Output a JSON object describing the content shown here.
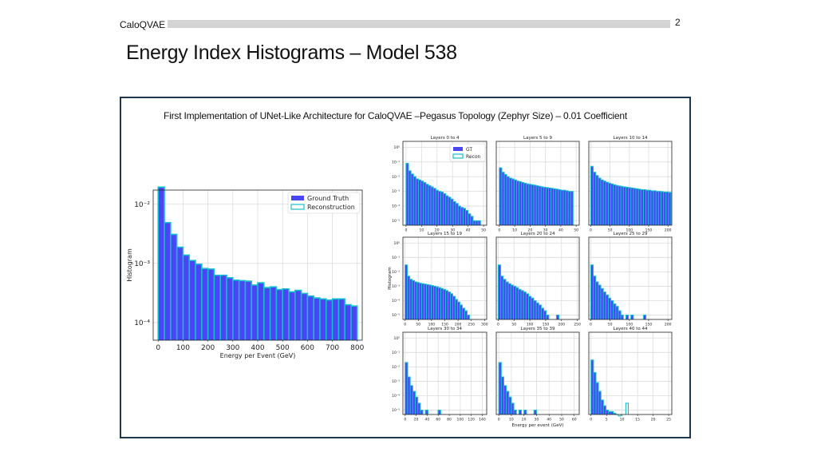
{
  "header": {
    "label": "CaloQVAE",
    "page_number": "2"
  },
  "slide": {
    "title": "Energy Index Histograms – Model 538"
  },
  "panel": {
    "caption": "First Implementation of UNet-Like Architecture for CaloQVAE –Pegasus Topology (Zephyr Size) – 0.01 Coefficient"
  },
  "colors": {
    "gt": "#4a45f5",
    "recon": "#17becf"
  },
  "chart_data": [
    {
      "type": "bar",
      "title": "",
      "xlabel": "Energy per Event (GeV)",
      "ylabel": "Histogram",
      "xlim": [
        -20,
        820
      ],
      "ylog": true,
      "ylim_exp": [
        -4.3,
        -1.76
      ],
      "xticks": [
        0,
        100,
        200,
        300,
        400,
        500,
        600,
        700,
        800
      ],
      "yticks": [
        {
          "exp": -2,
          "label": "10⁻²"
        },
        {
          "exp": -3,
          "label": "10⁻³"
        },
        {
          "exp": -4,
          "label": "10⁻⁴"
        }
      ],
      "legend": {
        "position": "top-right",
        "entries": [
          "Ground Truth",
          "Reconstruction"
        ]
      },
      "bin_start": 0,
      "bin_width": 25,
      "series": [
        {
          "name": "Ground Truth",
          "values": [
            0.0195,
            0.0049,
            0.0031,
            0.00188,
            0.00138,
            0.00112,
            0.00097,
            0.00082,
            0.0008,
            0.00063,
            0.00063,
            0.00057,
            0.00052,
            0.00051,
            0.0005,
            0.00043,
            0.00047,
            0.00039,
            0.0004,
            0.00036,
            0.00037,
            0.00033,
            0.00035,
            0.00031,
            0.00028,
            0.00026,
            0.00025,
            0.00024,
            0.00025,
            0.00025,
            0.0002,
            0.00019
          ]
        },
        {
          "name": "Reconstruction",
          "values": [
            0.0195,
            0.0049,
            0.0031,
            0.00188,
            0.00138,
            0.00112,
            0.00097,
            0.00082,
            0.0008,
            0.00063,
            0.00063,
            0.00057,
            0.00052,
            0.00051,
            0.0005,
            0.00043,
            0.00047,
            0.00039,
            0.0004,
            0.00036,
            0.00037,
            0.00033,
            0.00035,
            0.00031,
            0.00028,
            0.00026,
            0.00025,
            0.00024,
            0.00025,
            0.00025,
            0.0002,
            0.00019
          ]
        }
      ]
    },
    {
      "type": "bar",
      "title": "Layers 0 to 4",
      "xlabel": "",
      "ylabel": "",
      "xlim": [
        -2,
        52
      ],
      "ylog": true,
      "ylim_exp": [
        -5.3,
        0.4
      ],
      "xticks": [
        0,
        10,
        20,
        30,
        40,
        50
      ],
      "yticks": [
        {
          "exp": 0,
          "label": "10⁰"
        },
        {
          "exp": -1,
          "label": "10⁻¹"
        },
        {
          "exp": -2,
          "label": "10⁻²"
        },
        {
          "exp": -3,
          "label": "10⁻³"
        },
        {
          "exp": -4,
          "label": "10⁻⁴"
        },
        {
          "exp": -5,
          "label": "10⁻⁵"
        }
      ],
      "legend": {
        "position": "top-right",
        "entries": [
          "GT",
          "Recon"
        ]
      },
      "bin_start": 0,
      "bin_width": 1.6,
      "series": [
        {
          "name": "GT",
          "values": [
            0.08,
            0.025,
            0.015,
            0.01,
            0.007,
            0.006,
            0.005,
            0.004,
            0.003,
            0.0025,
            0.002,
            0.0016,
            0.0012,
            0.001,
            0.0009,
            0.0007,
            0.0005,
            0.0004,
            0.0003,
            0.0002,
            0.00015,
            0.0001,
            8e-05,
            7e-05,
            5e-05,
            3e-05,
            2e-05,
            1e-05,
            1e-05,
            1e-05
          ]
        },
        {
          "name": "Recon",
          "values": [
            0.08,
            0.025,
            0.015,
            0.01,
            0.007,
            0.006,
            0.005,
            0.004,
            0.003,
            0.0025,
            0.002,
            0.0016,
            0.0012,
            0.001,
            0.0009,
            0.0007,
            0.0005,
            0.0004,
            0.0003,
            0.0002,
            0.00015,
            0.0001,
            8e-05,
            7e-05,
            5e-05,
            3e-05,
            2e-05,
            1e-05,
            1e-05,
            1e-05
          ]
        }
      ]
    },
    {
      "type": "bar",
      "title": "Layers 5 to 9",
      "xlabel": "",
      "ylabel": "",
      "xlim": [
        -2,
        52
      ],
      "ylog": true,
      "ylim_exp": [
        -5.3,
        0.4
      ],
      "xticks": [
        0,
        10,
        20,
        30,
        40,
        50
      ],
      "yticks": [],
      "bin_start": 0,
      "bin_width": 1.6,
      "series": [
        {
          "name": "GT",
          "values": [
            0.04,
            0.02,
            0.014,
            0.01,
            0.008,
            0.007,
            0.006,
            0.005,
            0.0045,
            0.004,
            0.0036,
            0.0032,
            0.003,
            0.0028,
            0.0026,
            0.0024,
            0.0022,
            0.002,
            0.0019,
            0.0018,
            0.0017,
            0.0016,
            0.0015,
            0.0014,
            0.0013,
            0.0012,
            0.0012,
            0.0011,
            0.001,
            0.001
          ]
        },
        {
          "name": "Recon",
          "values": [
            0.04,
            0.02,
            0.014,
            0.01,
            0.008,
            0.007,
            0.006,
            0.005,
            0.0045,
            0.004,
            0.0036,
            0.0032,
            0.003,
            0.0028,
            0.0026,
            0.0024,
            0.0022,
            0.002,
            0.0019,
            0.0018,
            0.0017,
            0.0016,
            0.0015,
            0.0014,
            0.0013,
            0.0012,
            0.0012,
            0.0011,
            0.001,
            0.001
          ]
        }
      ]
    },
    {
      "type": "bar",
      "title": "Layers 10 to 14",
      "xlabel": "",
      "ylabel": "",
      "xlim": [
        -5,
        210
      ],
      "ylog": true,
      "ylim_exp": [
        -5.3,
        0.4
      ],
      "xticks": [
        0,
        50,
        100,
        150,
        200
      ],
      "yticks": [],
      "bin_start": 0,
      "bin_width": 6.5,
      "series": [
        {
          "name": "GT",
          "values": [
            0.05,
            0.02,
            0.012,
            0.008,
            0.006,
            0.005,
            0.0042,
            0.0036,
            0.0032,
            0.0028,
            0.0025,
            0.0023,
            0.0021,
            0.002,
            0.0019,
            0.0018,
            0.0017,
            0.0016,
            0.0015,
            0.0014,
            0.0013,
            0.0013,
            0.0012,
            0.0012,
            0.0011,
            0.0011,
            0.001,
            0.001,
            0.00095,
            0.0009,
            0.0009,
            0.00085
          ]
        },
        {
          "name": "Recon",
          "values": [
            0.05,
            0.02,
            0.012,
            0.008,
            0.006,
            0.005,
            0.0042,
            0.0036,
            0.0032,
            0.0028,
            0.0025,
            0.0023,
            0.0021,
            0.002,
            0.0019,
            0.0018,
            0.0017,
            0.0016,
            0.0015,
            0.0014,
            0.0013,
            0.0013,
            0.0012,
            0.0012,
            0.0011,
            0.0011,
            0.001,
            0.001,
            0.00095,
            0.0009,
            0.0009,
            0.00085
          ]
        }
      ]
    },
    {
      "type": "bar",
      "title": "Layers 15 to 19",
      "xlabel": "",
      "ylabel": "Histogram",
      "xlim": [
        -8,
        308
      ],
      "ylog": true,
      "ylim_exp": [
        -5.3,
        0.4
      ],
      "xticks": [
        0,
        50,
        100,
        150,
        200,
        250,
        300
      ],
      "yticks": [
        {
          "exp": 0,
          "label": "10⁰"
        },
        {
          "exp": -1,
          "label": "10⁻¹"
        },
        {
          "exp": -2,
          "label": "10⁻²"
        },
        {
          "exp": -3,
          "label": "10⁻³"
        },
        {
          "exp": -4,
          "label": "10⁻⁴"
        },
        {
          "exp": -5,
          "label": "10⁻⁵"
        }
      ],
      "bin_start": 0,
      "bin_width": 9,
      "series": [
        {
          "name": "GT",
          "values": [
            0.03,
            0.005,
            0.003,
            0.0025,
            0.002,
            0.0018,
            0.0016,
            0.0015,
            0.0014,
            0.0013,
            0.0012,
            0.0011,
            0.001,
            0.0009,
            0.0008,
            0.0007,
            0.0006,
            0.0005,
            0.0004,
            0.0003,
            0.0002,
            0.00012,
            8e-05,
            5e-05,
            3e-05,
            2e-05,
            1e-05
          ]
        },
        {
          "name": "Recon",
          "values": [
            0.03,
            0.005,
            0.003,
            0.0025,
            0.002,
            0.0018,
            0.0016,
            0.0015,
            0.0014,
            0.0013,
            0.0012,
            0.0011,
            0.001,
            0.0009,
            0.0008,
            0.0007,
            0.0006,
            0.0005,
            0.0004,
            0.0003,
            0.0002,
            0.00012,
            8e-05,
            5e-05,
            3e-05,
            2e-05,
            1e-05
          ]
        }
      ]
    },
    {
      "type": "bar",
      "title": "Layers 20 to 24",
      "xlabel": "",
      "ylabel": "",
      "xlim": [
        -6,
        256
      ],
      "ylog": true,
      "ylim_exp": [
        -5.3,
        0.4
      ],
      "xticks": [
        0,
        50,
        100,
        150,
        200,
        250
      ],
      "yticks": [],
      "bin_start": 0,
      "bin_width": 8,
      "series": [
        {
          "name": "GT",
          "values": [
            0.03,
            0.005,
            0.003,
            0.002,
            0.0015,
            0.0012,
            0.001,
            0.0008,
            0.0006,
            0.0005,
            0.0004,
            0.0003,
            0.0002,
            0.00015,
            0.0001,
            7e-05,
            5e-05,
            3e-05,
            2e-05,
            1e-05,
            0,
            0,
            0,
            1e-05
          ]
        },
        {
          "name": "Recon",
          "values": [
            0.03,
            0.005,
            0.003,
            0.002,
            0.0015,
            0.0012,
            0.001,
            0.0008,
            0.0006,
            0.0005,
            0.0004,
            0.0003,
            0.0002,
            0.00015,
            0.0001,
            7e-05,
            5e-05,
            3e-05,
            2e-05,
            1e-05,
            0,
            0,
            0,
            1e-05
          ]
        }
      ]
    },
    {
      "type": "bar",
      "title": "Layers 25 to 29",
      "xlabel": "",
      "ylabel": "",
      "xlim": [
        -5,
        210
      ],
      "ylog": true,
      "ylim_exp": [
        -5.3,
        0.4
      ],
      "xticks": [
        0,
        50,
        100,
        150,
        200
      ],
      "yticks": [],
      "bin_start": 0,
      "bin_width": 6.5,
      "series": [
        {
          "name": "GT",
          "values": [
            0.03,
            0.005,
            0.002,
            0.0012,
            0.0007,
            0.0004,
            0.00025,
            0.00015,
            0.0001,
            6e-05,
            4e-05,
            2e-05,
            1e-05,
            0,
            1e-05,
            0,
            1e-05,
            0,
            0,
            0,
            0,
            1e-05
          ]
        },
        {
          "name": "Recon",
          "values": [
            0.03,
            0.005,
            0.002,
            0.0012,
            0.0007,
            0.0004,
            0.00025,
            0.00015,
            0.0001,
            6e-05,
            4e-05,
            2e-05,
            1e-05,
            0,
            1e-05,
            0,
            1e-05,
            0,
            0,
            0,
            0,
            1e-05
          ]
        }
      ]
    },
    {
      "type": "bar",
      "title": "Layers 30 to 34",
      "xlabel": "",
      "ylabel": "",
      "xlim": [
        -4,
        148
      ],
      "ylog": true,
      "ylim_exp": [
        -5.3,
        0.4
      ],
      "xticks": [
        0,
        20,
        40,
        60,
        80,
        100,
        120,
        140
      ],
      "yticks": [
        {
          "exp": 0,
          "label": "10⁰"
        },
        {
          "exp": -1,
          "label": "10⁻¹"
        },
        {
          "exp": -2,
          "label": "10⁻²"
        },
        {
          "exp": -3,
          "label": "10⁻³"
        },
        {
          "exp": -4,
          "label": "10⁻⁴"
        },
        {
          "exp": -5,
          "label": "10⁻⁵"
        }
      ],
      "bin_start": 0,
      "bin_width": 4.6,
      "series": [
        {
          "name": "GT",
          "values": [
            0.02,
            0.002,
            0.0005,
            0.0002,
            8e-05,
            3e-05,
            1e-05,
            0,
            1e-05,
            0,
            0,
            0,
            0,
            1e-05
          ]
        },
        {
          "name": "Recon",
          "values": [
            0.02,
            0.002,
            0.0005,
            0.0002,
            8e-05,
            3e-05,
            1e-05,
            0,
            1e-05,
            0,
            0,
            0,
            0,
            1e-05
          ]
        }
      ]
    },
    {
      "type": "bar",
      "title": "Layers 35 to 39",
      "xlabel": "Energy per event (GeV)",
      "ylabel": "",
      "xlim": [
        -2,
        64
      ],
      "ylog": true,
      "ylim_exp": [
        -5.3,
        0.4
      ],
      "xticks": [
        0,
        10,
        20,
        30,
        40,
        50,
        60
      ],
      "yticks": [],
      "bin_start": 0,
      "bin_width": 2,
      "series": [
        {
          "name": "GT",
          "values": [
            0.02,
            0.002,
            0.0005,
            0.0002,
            8e-05,
            3e-05,
            1e-05,
            0,
            1e-05,
            0,
            1e-05,
            0,
            0,
            0,
            1e-05
          ]
        },
        {
          "name": "Recon",
          "values": [
            0.02,
            0.002,
            0.0005,
            0.0002,
            8e-05,
            3e-05,
            1e-05,
            0,
            1e-05,
            0,
            1e-05,
            0,
            0,
            0,
            1e-05
          ]
        }
      ]
    },
    {
      "type": "bar",
      "title": "Layers 40 to 44",
      "xlabel": "",
      "ylabel": "",
      "xlim": [
        -0.7,
        26
      ],
      "ylog": true,
      "ylim_exp": [
        -5.3,
        0.4
      ],
      "xticks": [
        0,
        5,
        10,
        15,
        20,
        25
      ],
      "yticks": [],
      "bin_start": 0,
      "bin_width": 0.8,
      "series": [
        {
          "name": "GT",
          "values": [
            0.03,
            0.004,
            0.0008,
            0.0002,
            5e-05,
            2e-05,
            1e-05,
            8e-06,
            8e-06,
            6e-06,
            5e-06,
            4e-06
          ]
        },
        {
          "name": "Recon",
          "values": [
            0.03,
            0.004,
            0.0008,
            0.0002,
            5e-05,
            2e-05,
            1e-05,
            8e-06,
            8e-06,
            6e-06,
            5e-06,
            4e-06,
            0,
            0,
            3e-05
          ]
        }
      ]
    }
  ]
}
